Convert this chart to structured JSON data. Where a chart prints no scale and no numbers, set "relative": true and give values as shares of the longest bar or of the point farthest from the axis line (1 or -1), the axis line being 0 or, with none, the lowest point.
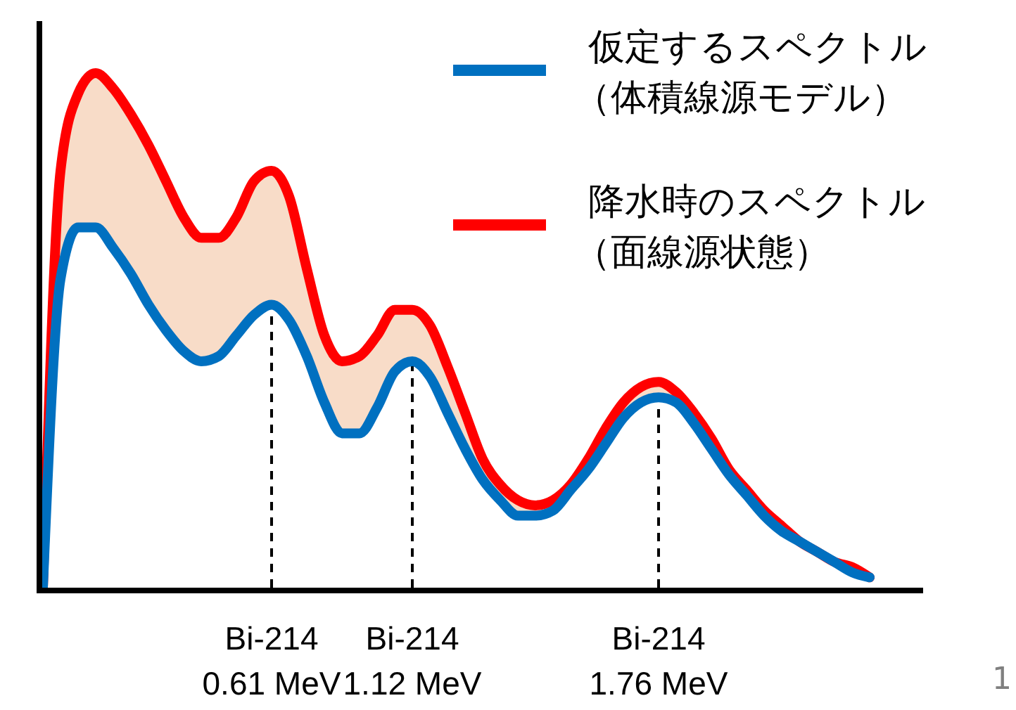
{
  "chart_data": {
    "type": "line",
    "relative": true,
    "legend": "top right",
    "line_style": "solid",
    "marker": "none",
    "categories": [
      null,
      null,
      null,
      null,
      null,
      null,
      null,
      null,
      null,
      null,
      null,
      null,
      null,
      "Bi-214\n0.61 MeV",
      null,
      null,
      null,
      null,
      null,
      null,
      null,
      "Bi-214\n1.12 MeV",
      null,
      null,
      null,
      null,
      null,
      null,
      null,
      null,
      null,
      null,
      null,
      null,
      null,
      "Bi-214\n1.76 MeV",
      null,
      null,
      null,
      null,
      null,
      null,
      null,
      null,
      null,
      null,
      null,
      null
    ],
    "series": [
      {
        "name": "仮定するスペクトル（体積線源モデル）",
        "color": "#0070c0",
        "values": [
          0,
          0.6,
          0.7,
          0.7,
          0.66,
          0.61,
          0.55,
          0.5,
          0.46,
          0.44,
          0.45,
          0.49,
          0.53,
          0.55,
          0.52,
          0.45,
          0.36,
          0.3,
          0.3,
          0.35,
          0.42,
          0.44,
          0.41,
          0.34,
          0.27,
          0.21,
          0.17,
          0.14,
          0.14,
          0.15,
          0.19,
          0.23,
          0.28,
          0.33,
          0.36,
          0.37,
          0.36,
          0.32,
          0.27,
          0.22,
          0.18,
          0.14,
          0.11,
          0.09,
          0.07,
          0.05,
          0.03,
          0.02
        ]
      },
      {
        "name": "降水時のスペクトル（面線源状態）",
        "color": "#ff0000",
        "values": [
          0,
          0.81,
          0.96,
          1,
          0.97,
          0.92,
          0.86,
          0.79,
          0.72,
          0.68,
          0.68,
          0.72,
          0.79,
          0.81,
          0.76,
          0.62,
          0.49,
          0.44,
          0.45,
          0.49,
          0.54,
          0.54,
          0.51,
          0.43,
          0.34,
          0.25,
          0.2,
          0.17,
          0.16,
          0.17,
          0.2,
          0.25,
          0.31,
          0.36,
          0.39,
          0.4,
          0.38,
          0.34,
          0.29,
          0.23,
          0.19,
          0.15,
          0.12,
          0.09,
          0.07,
          0.05,
          0.04,
          0.02
        ],
        "lower": [
          0,
          0.6,
          0.7,
          0.7,
          0.66,
          0.61,
          0.55,
          0.5,
          0.46,
          0.44,
          0.45,
          0.49,
          0.53,
          0.55,
          0.52,
          0.45,
          0.36,
          0.3,
          0.3,
          0.35,
          0.42,
          0.44,
          0.41,
          0.34,
          0.27,
          0.21,
          0.17,
          0.14,
          0.14,
          0.15,
          0.19,
          0.23,
          0.28,
          0.33,
          0.36,
          0.37,
          0.36,
          0.32,
          0.27,
          0.22,
          0.18,
          0.14,
          0.11,
          0.09,
          0.07,
          0.05,
          0.03,
          0.02
        ],
        "upper": [
          0,
          0.81,
          0.96,
          1,
          0.97,
          0.92,
          0.86,
          0.79,
          0.72,
          0.68,
          0.68,
          0.72,
          0.79,
          0.81,
          0.76,
          0.62,
          0.49,
          0.44,
          0.45,
          0.49,
          0.54,
          0.54,
          0.51,
          0.43,
          0.34,
          0.25,
          0.2,
          0.17,
          0.16,
          0.17,
          0.2,
          0.25,
          0.31,
          0.36,
          0.39,
          0.4,
          0.38,
          0.34,
          0.29,
          0.23,
          0.19,
          0.15,
          0.12,
          0.09,
          0.07,
          0.05,
          0.04,
          0.02
        ]
      }
    ],
    "ref_lines": [
      {
        "axis": "x",
        "value": "Bi-214\n0.61 MeV",
        "color": "#000000",
        "line_style": "dashed"
      },
      {
        "axis": "x",
        "value": "Bi-214\n1.12 MeV",
        "color": "#000000",
        "line_style": "dashed"
      },
      {
        "axis": "x",
        "value": "Bi-214\n1.76 MeV",
        "color": "#000000",
        "line_style": "dashed"
      }
    ],
    "annotations": [
      "1"
    ]
  }
}
